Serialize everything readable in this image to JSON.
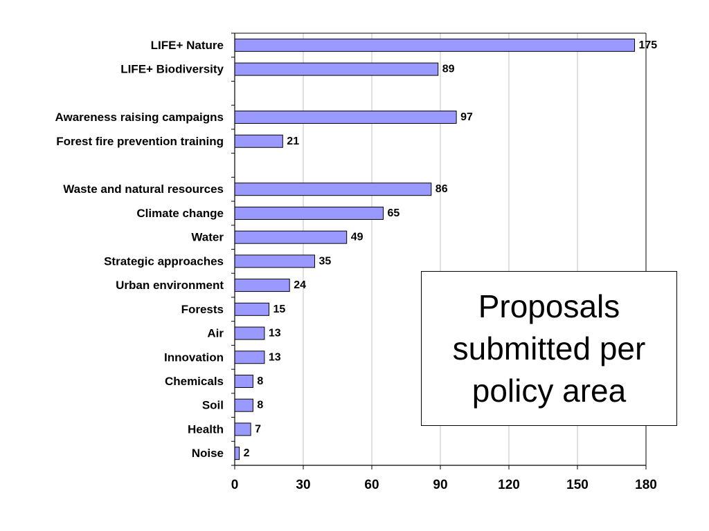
{
  "chart_data": {
    "type": "bar",
    "orientation": "horizontal",
    "title": "Proposals\nsubmitted per\npolicy area",
    "xlabel": "",
    "ylabel": "",
    "xlim": [
      0,
      180
    ],
    "xticks": [
      0,
      30,
      60,
      90,
      120,
      150,
      180
    ],
    "grid": "vertical",
    "categories": [
      "LIFE+ Nature",
      "LIFE+ Biodiversity",
      "",
      "Awareness raising campaigns",
      "Forest fire prevention training",
      "",
      "Waste and natural resources",
      "Climate change",
      "Water",
      "Strategic approaches",
      "Urban environment",
      "Forests",
      "Air",
      "Innovation",
      "Chemicals",
      "Soil",
      "Health",
      "Noise"
    ],
    "values": [
      175,
      89,
      null,
      97,
      21,
      null,
      86,
      65,
      49,
      35,
      24,
      15,
      13,
      13,
      8,
      8,
      7,
      2
    ],
    "bar_color": "#9999ff",
    "bar_edge_color": "#000000",
    "grid_color": "#c0c0c0"
  }
}
